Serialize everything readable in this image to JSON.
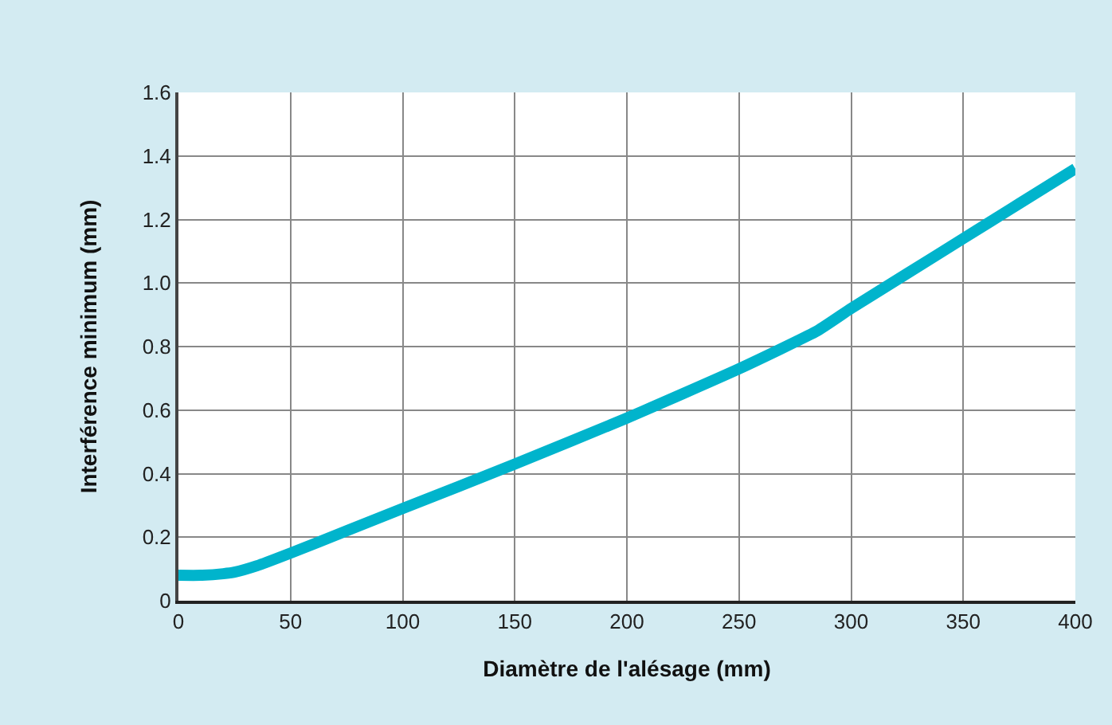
{
  "chart_data": {
    "type": "line",
    "xlabel": "Diamètre de l'alésage (mm)",
    "ylabel": "Interférence minimum (mm)",
    "x": [
      0,
      10,
      20,
      25,
      35,
      50,
      75,
      100,
      150,
      200,
      250,
      285,
      300,
      325,
      350,
      375,
      400
    ],
    "series": [
      {
        "color": "#00b4cc",
        "values": [
          0.08,
          0.08,
          0.085,
          0.09,
          0.11,
          0.15,
          0.22,
          0.29,
          0.43,
          0.575,
          0.73,
          0.85,
          0.92,
          1.03,
          1.14,
          1.25,
          1.36
        ]
      }
    ],
    "xlim": [
      0,
      400
    ],
    "xticks": [
      0,
      50,
      100,
      150,
      200,
      250,
      300,
      350,
      400
    ],
    "ylim": [
      0,
      1.6
    ],
    "yticks": [
      0,
      0.2,
      0.4,
      0.6,
      0.8,
      {
        "value": 1.0,
        "label": "1.0"
      },
      1.2,
      1.4,
      1.6
    ],
    "grid": true,
    "marker": "none",
    "line_style": "solid"
  }
}
